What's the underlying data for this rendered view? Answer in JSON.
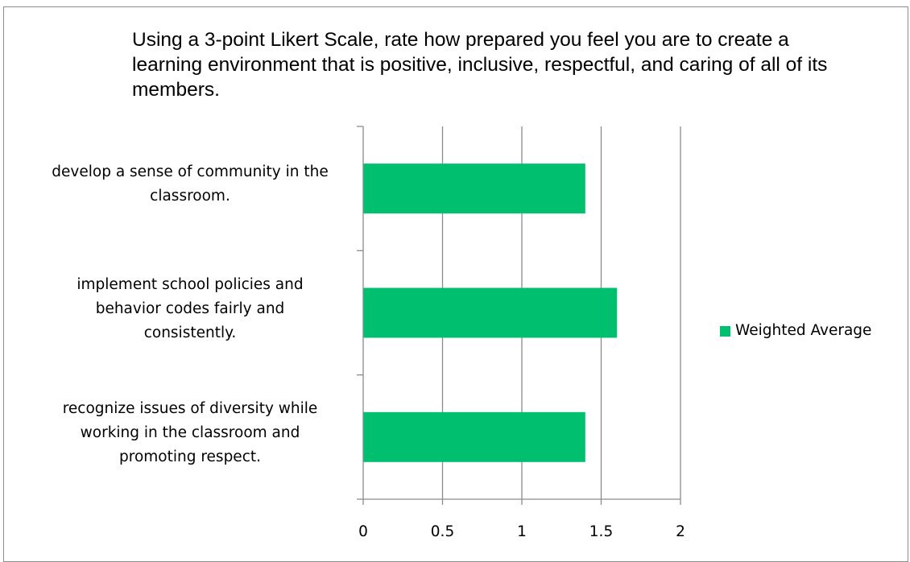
{
  "chart_data": {
    "type": "bar",
    "orientation": "horizontal",
    "title": "Using a 3-point Likert Scale, rate how prepared you feel you are to create a learning environment that is positive, inclusive, respectful, and caring of all of its members.",
    "categories": [
      "develop a sense of community in the classroom.",
      "implement school policies and behavior codes fairly and consistently.",
      "recognize issues of diversity while working in the classroom and promoting respect."
    ],
    "category_label_lines": [
      [
        "develop a sense of community in the",
        "classroom."
      ],
      [
        "implement school policies and",
        "behavior codes fairly and",
        "consistently."
      ],
      [
        "recognize issues of diversity while",
        "working in the classroom and",
        "promoting respect."
      ]
    ],
    "series": [
      {
        "name": "Weighted Average",
        "values": [
          1.4,
          1.6,
          1.4
        ],
        "color": "#00c070"
      }
    ],
    "xlim": [
      0,
      2
    ],
    "xticks": [
      "0",
      "0.5",
      "1",
      "1.5",
      "2"
    ],
    "grid": true,
    "legend_position": "right",
    "axis_color": "#8c8c8c",
    "grid_color": "#8c8c8c"
  }
}
